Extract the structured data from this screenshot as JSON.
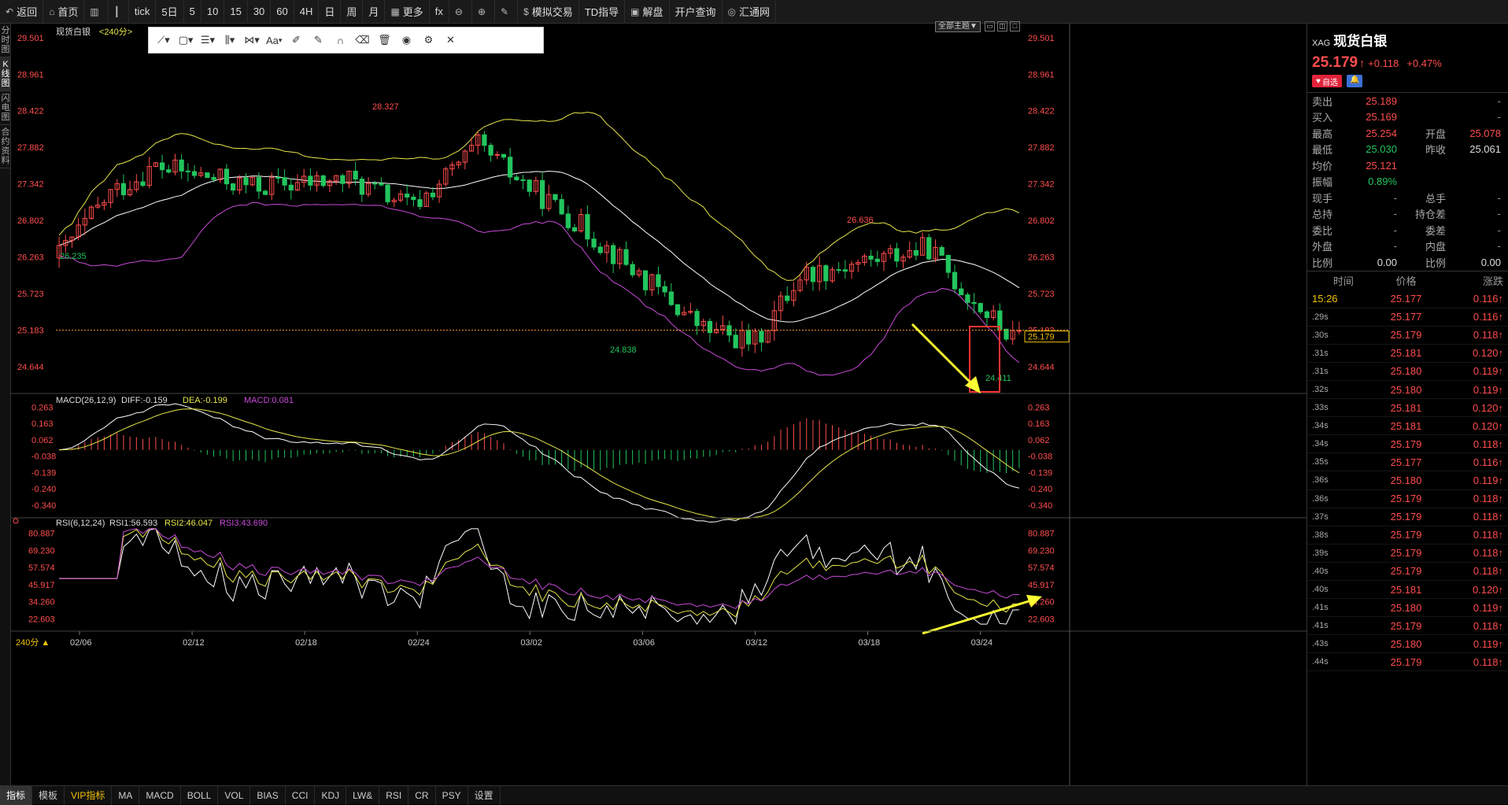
{
  "toolbar": {
    "items": [
      {
        "icon": "back-arrow-icon",
        "label": "返回"
      },
      {
        "icon": "home-icon",
        "label": "首页"
      },
      {
        "icon": "bars-icon",
        "label": ""
      },
      {
        "icon": "candles-icon",
        "label": ""
      },
      {
        "icon": "",
        "label": "tick"
      },
      {
        "icon": "",
        "label": "5日"
      },
      {
        "icon": "",
        "label": "5"
      },
      {
        "icon": "",
        "label": "10"
      },
      {
        "icon": "",
        "label": "15"
      },
      {
        "icon": "",
        "label": "30"
      },
      {
        "icon": "",
        "label": "60"
      },
      {
        "icon": "",
        "label": "4H"
      },
      {
        "icon": "",
        "label": "日"
      },
      {
        "icon": "",
        "label": "周"
      },
      {
        "icon": "",
        "label": "月"
      },
      {
        "icon": "grid-icon",
        "label": "更多"
      },
      {
        "icon": "",
        "label": "fx"
      },
      {
        "icon": "zoom-out-icon",
        "label": ""
      },
      {
        "icon": "zoom-in-icon",
        "label": ""
      },
      {
        "icon": "pen-icon",
        "label": ""
      },
      {
        "icon": "dollar-icon",
        "label": "模拟交易"
      },
      {
        "icon": "",
        "label": "TD指导"
      },
      {
        "icon": "chat-icon",
        "label": "解盘"
      },
      {
        "icon": "",
        "label": "开户查询"
      },
      {
        "icon": "huitong-logo-icon",
        "label": "汇通网"
      }
    ]
  },
  "left_tabs": [
    "分时图",
    "K线图",
    "闪电图",
    "合约资料"
  ],
  "draw_toolbar": {
    "tools": [
      "line-tool-icon",
      "rect-tool-icon",
      "fib-tool-icon",
      "channel-tool-icon",
      "pattern-tool-icon",
      "text-tool-icon",
      "ruler-icon",
      "brush-icon",
      "magnet-icon",
      "eraser-icon",
      "trash-icon",
      "eye-icon",
      "gear-icon",
      "close-icon"
    ],
    "text_tool_label": "Aa"
  },
  "main_panel": {
    "title": "现货白银",
    "period": "<240分>",
    "theme_button": "全部主题▼",
    "price_axis": [
      "29.501",
      "28.961",
      "28.422",
      "27.882",
      "27.342",
      "26.802",
      "26.263",
      "25.723",
      "25.183",
      "24.644"
    ],
    "current_price_tag": "25.179",
    "annotations": [
      {
        "text": "28.327",
        "color": "#ff4d4d"
      },
      {
        "text": "26.235",
        "color": "#22c55e"
      },
      {
        "text": "24.838",
        "color": "#22c55e"
      },
      {
        "text": "26.636",
        "color": "#ff4d4d"
      },
      {
        "text": "24.411",
        "color": "#22c55e"
      }
    ]
  },
  "macd_panel": {
    "label": "MACD(26,12,9)",
    "diff": "DIFF:-0.159",
    "dea": "DEA:-0.199",
    "macd": "MACD:0.081",
    "axis": [
      "0.263",
      "0.163",
      "0.062",
      "-0.038",
      "-0.139",
      "-0.240",
      "-0.340"
    ]
  },
  "rsi_panel": {
    "label": "RSI(6,12,24)",
    "rsi1": "RSI1:56.593",
    "rsi2": "RSI2:46.047",
    "rsi3": "RSI3:43.690",
    "axis": [
      "80.887",
      "69.230",
      "57.574",
      "45.917",
      "34.260",
      "22.603"
    ]
  },
  "x_axis": {
    "period_selector": "240分 ▲",
    "dates": [
      "02/06",
      "02/12",
      "02/18",
      "02/24",
      "03/02",
      "03/06",
      "03/12",
      "03/18",
      "03/24"
    ]
  },
  "quote": {
    "symbol": "XAG",
    "name": "现货白银",
    "price": "25.179",
    "change": "+0.118",
    "change_pct": "+0.47%",
    "watch_label": "自选",
    "fields": [
      {
        "l1": "卖出",
        "v1": "25.189",
        "c1": "red",
        "l2": "",
        "v2": "-",
        "c2": "gray"
      },
      {
        "l1": "买入",
        "v1": "25.169",
        "c1": "red",
        "l2": "",
        "v2": "-",
        "c2": "gray"
      },
      {
        "l1": "最高",
        "v1": "25.254",
        "c1": "red",
        "l2": "开盘",
        "v2": "25.078",
        "c2": "red"
      },
      {
        "l1": "最低",
        "v1": "25.030",
        "c1": "green",
        "l2": "昨收",
        "v2": "25.061",
        "c2": "white"
      },
      {
        "l1": "均价",
        "v1": "25.121",
        "c1": "red",
        "l2": "",
        "v2": "",
        "c2": "gray"
      },
      {
        "l1": "振幅",
        "v1": "0.89%",
        "c1": "green",
        "l2": "",
        "v2": "",
        "c2": "gray"
      },
      {
        "l1": "现手",
        "v1": "-",
        "c1": "gray",
        "l2": "总手",
        "v2": "-",
        "c2": "gray"
      },
      {
        "l1": "总持",
        "v1": "-",
        "c1": "gray",
        "l2": "持仓差",
        "v2": "-",
        "c2": "gray"
      },
      {
        "l1": "委比",
        "v1": "-",
        "c1": "gray",
        "l2": "委差",
        "v2": "-",
        "c2": "gray"
      },
      {
        "l1": "外盘",
        "v1": "-",
        "c1": "gray",
        "l2": "内盘",
        "v2": "-",
        "c2": "gray"
      },
      {
        "l1": "比例",
        "v1": "0.00",
        "c1": "white",
        "l2": "比例",
        "v2": "0.00",
        "c2": "white"
      }
    ],
    "ticks_header": {
      "time": "时间",
      "price": "价格",
      "change": "涨跌"
    },
    "ticks": [
      {
        "time": "15:26",
        "price": "25.177",
        "change": "0.116↑"
      },
      {
        "time": ".29s",
        "price": "25.177",
        "change": "0.116↑"
      },
      {
        "time": ".30s",
        "price": "25.179",
        "change": "0.118↑"
      },
      {
        "time": ".31s",
        "price": "25.181",
        "change": "0.120↑"
      },
      {
        "time": ".31s",
        "price": "25.180",
        "change": "0.119↑"
      },
      {
        "time": ".32s",
        "price": "25.180",
        "change": "0.119↑"
      },
      {
        "time": ".33s",
        "price": "25.181",
        "change": "0.120↑"
      },
      {
        "time": ".34s",
        "price": "25.181",
        "change": "0.120↑"
      },
      {
        "time": ".34s",
        "price": "25.179",
        "change": "0.118↑"
      },
      {
        "time": ".35s",
        "price": "25.177",
        "change": "0.116↑"
      },
      {
        "time": ".36s",
        "price": "25.180",
        "change": "0.119↑"
      },
      {
        "time": ".36s",
        "price": "25.179",
        "change": "0.118↑"
      },
      {
        "time": ".37s",
        "price": "25.179",
        "change": "0.118↑"
      },
      {
        "time": ".38s",
        "price": "25.179",
        "change": "0.118↑"
      },
      {
        "time": ".39s",
        "price": "25.179",
        "change": "0.118↑"
      },
      {
        "time": ".40s",
        "price": "25.179",
        "change": "0.118↑"
      },
      {
        "time": ".40s",
        "price": "25.181",
        "change": "0.120↑"
      },
      {
        "time": ".41s",
        "price": "25.180",
        "change": "0.119↑"
      },
      {
        "time": ".41s",
        "price": "25.179",
        "change": "0.118↑"
      },
      {
        "time": ".43s",
        "price": "25.180",
        "change": "0.119↑"
      },
      {
        "time": ".44s",
        "price": "25.179",
        "change": "0.118↑"
      }
    ]
  },
  "bottom_tabs": [
    "指标",
    "模板",
    "VIP指标",
    "MA",
    "MACD",
    "BOLL",
    "VOL",
    "BIAS",
    "CCI",
    "KDJ",
    "LW&",
    "RSI",
    "CR",
    "PSY",
    "设置"
  ],
  "colors": {
    "up": "#ff4d4d",
    "down": "#22c55e",
    "bg": "#000000",
    "bollinger_mid": "#ffffff",
    "bollinger_upper": "#e6e64a",
    "bollinger_lower": "#c84bd8",
    "highlight_box": "#ff3333",
    "arrow": "#ffff33"
  }
}
